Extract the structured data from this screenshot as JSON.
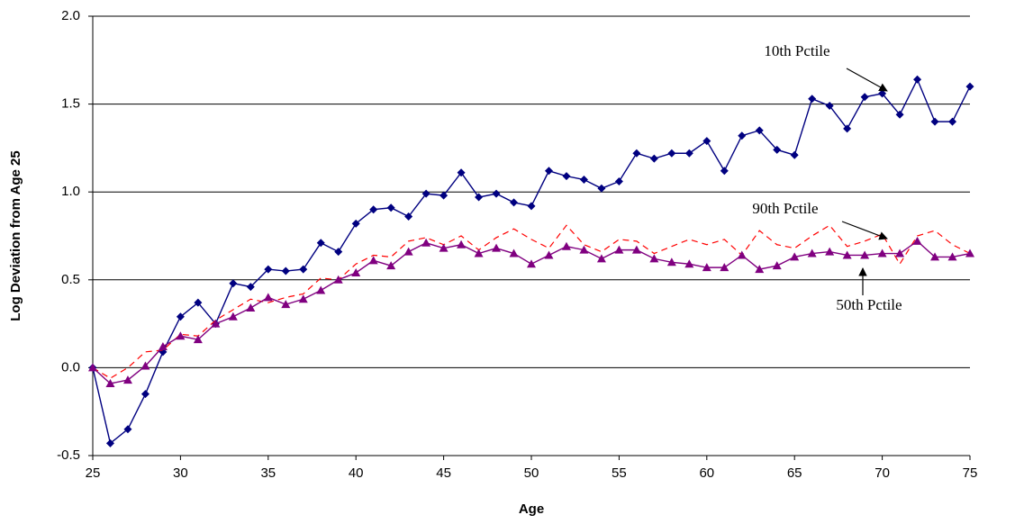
{
  "chart_data": {
    "type": "line",
    "x_label": "Age",
    "y_label": "Log Deviation from Age 25",
    "x": [
      25,
      26,
      27,
      28,
      29,
      30,
      31,
      32,
      33,
      34,
      35,
      36,
      37,
      38,
      39,
      40,
      41,
      42,
      43,
      44,
      45,
      46,
      47,
      48,
      49,
      50,
      51,
      52,
      53,
      54,
      55,
      56,
      57,
      58,
      59,
      60,
      61,
      62,
      63,
      64,
      65,
      66,
      67,
      68,
      69,
      70,
      71,
      72,
      73,
      74,
      75
    ],
    "xlim": [
      25,
      75
    ],
    "xticks": [
      25,
      30,
      35,
      40,
      45,
      50,
      55,
      60,
      65,
      70,
      75
    ],
    "ylim": [
      -0.5,
      2.0
    ],
    "yticks": [
      -0.5,
      {
        "value": 0,
        "label": "0.0"
      },
      0.5,
      {
        "value": 1,
        "label": "1.0"
      },
      1.5,
      {
        "value": 2,
        "label": "2.0"
      }
    ],
    "grid": true,
    "series": [
      {
        "name": "10th Pctile",
        "color": "#000080",
        "marker": "diamond",
        "dash": false,
        "values": [
          0,
          -0.43,
          -0.35,
          -0.15,
          0.09,
          0.29,
          0.37,
          0.25,
          0.48,
          0.46,
          0.56,
          0.55,
          0.56,
          0.71,
          0.66,
          0.82,
          0.9,
          0.91,
          0.86,
          0.99,
          0.98,
          1.11,
          0.97,
          0.99,
          0.94,
          0.92,
          1.12,
          1.09,
          1.07,
          1.02,
          1.06,
          1.22,
          1.19,
          1.22,
          1.22,
          1.29,
          1.12,
          1.32,
          1.35,
          1.24,
          1.21,
          1.53,
          1.49,
          1.36,
          1.54,
          1.56,
          1.44,
          1.64,
          1.4,
          1.4,
          1.6
        ]
      },
      {
        "name": "90th Pctile",
        "color": "#ff0000",
        "marker": "none",
        "dash": true,
        "values": [
          0,
          -0.06,
          0.0,
          0.09,
          0.1,
          0.19,
          0.18,
          0.27,
          0.33,
          0.39,
          0.37,
          0.4,
          0.42,
          0.51,
          0.5,
          0.59,
          0.64,
          0.63,
          0.72,
          0.74,
          0.7,
          0.75,
          0.67,
          0.74,
          0.79,
          0.73,
          0.68,
          0.81,
          0.7,
          0.66,
          0.73,
          0.72,
          0.65,
          0.69,
          0.73,
          0.7,
          0.73,
          0.64,
          0.78,
          0.7,
          0.68,
          0.75,
          0.81,
          0.69,
          0.72,
          0.76,
          0.59,
          0.75,
          0.78,
          0.7,
          0.65
        ]
      },
      {
        "name": "50th Pctile",
        "color": "#800080",
        "marker": "triangle",
        "dash": false,
        "values": [
          0,
          -0.09,
          -0.07,
          0.01,
          0.12,
          0.18,
          0.16,
          0.25,
          0.29,
          0.34,
          0.4,
          0.36,
          0.39,
          0.44,
          0.5,
          0.54,
          0.61,
          0.58,
          0.66,
          0.71,
          0.68,
          0.7,
          0.65,
          0.68,
          0.65,
          0.59,
          0.64,
          0.69,
          0.67,
          0.62,
          0.67,
          0.67,
          0.62,
          0.6,
          0.59,
          0.57,
          0.57,
          0.64,
          0.56,
          0.58,
          0.63,
          0.65,
          0.66,
          0.64,
          0.64,
          0.65,
          0.65,
          0.72,
          0.63,
          0.63,
          0.65
        ]
      }
    ]
  }
}
